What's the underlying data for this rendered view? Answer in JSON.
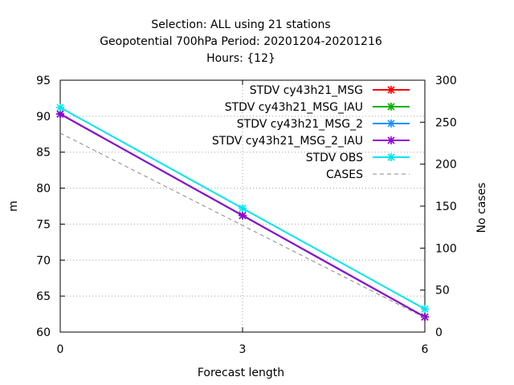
{
  "chart_data": {
    "type": "line",
    "title_lines": [
      "Selection: ALL using    21 stations",
      "Geopotential 700hPa   Period: 20201204-20201216",
      "Hours: {12}"
    ],
    "xlabel": "Forecast length",
    "ylabel": "m",
    "y2label": "No cases",
    "x": [
      0,
      3,
      6
    ],
    "xlim": [
      0,
      6
    ],
    "ylim": [
      60,
      95
    ],
    "y2lim": [
      0,
      300
    ],
    "xticks": [
      "0",
      "3",
      "6"
    ],
    "yticks": [
      60,
      65,
      70,
      75,
      80,
      85,
      90,
      95
    ],
    "y2ticks": [
      0,
      50,
      100,
      150,
      200,
      250,
      300
    ],
    "grid": true,
    "legend_position": "top-right",
    "series": [
      {
        "name": "STDV cy43h21_MSG",
        "color": "#ff0000",
        "axis": "y",
        "dashed": false,
        "values": [
          90.3,
          76.2,
          62.1
        ]
      },
      {
        "name": "STDV cy43h21_MSG_IAU",
        "color": "#00b000",
        "axis": "y",
        "dashed": false,
        "values": [
          90.3,
          76.2,
          62.1
        ]
      },
      {
        "name": "STDV cy43h21_MSG_2",
        "color": "#1e90ff",
        "axis": "y",
        "dashed": false,
        "values": [
          90.3,
          76.2,
          62.1
        ]
      },
      {
        "name": "STDV cy43h21_MSG_2_IAU",
        "color": "#9400d3",
        "axis": "y",
        "dashed": false,
        "values": [
          90.3,
          76.2,
          62.1
        ]
      },
      {
        "name": "STDV OBS",
        "color": "#00e5ee",
        "axis": "y",
        "dashed": false,
        "values": [
          91.2,
          77.2,
          63.2
        ]
      },
      {
        "name": "CASES",
        "color": "#888888",
        "axis": "y2",
        "dashed": true,
        "values": [
          237,
          127,
          17
        ]
      }
    ]
  }
}
